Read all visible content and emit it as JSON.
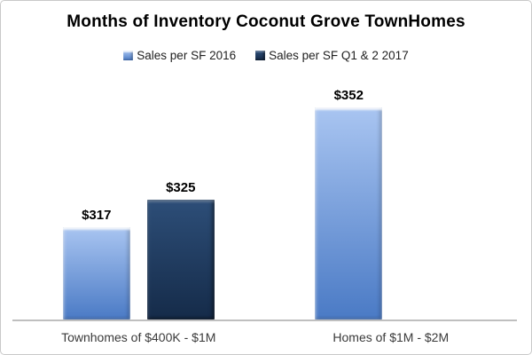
{
  "chart_data": {
    "type": "bar",
    "title": "Months of Inventory Coconut Grove TownHomes",
    "categories": [
      "Townhomes of $400K - $1M",
      "Homes of $1M - $2M"
    ],
    "series": [
      {
        "name": "Sales per SF 2016",
        "values": [
          317,
          352
        ],
        "color_top": "#a9c5f1",
        "color_bottom": "#4a7ac5"
      },
      {
        "name": "Sales per SF Q1 & 2 2017",
        "values": [
          325,
          null
        ],
        "color_top": "#2d4e78",
        "color_bottom": "#152b49"
      }
    ],
    "value_prefix": "$",
    "data_labels": [
      [
        "$317",
        "$352"
      ],
      [
        "$325",
        null
      ]
    ],
    "xlabel": "",
    "ylabel": "",
    "ylim": [
      290,
      365
    ],
    "grid": false,
    "legend_position": "top",
    "axis_line_color": "#bfbfbf",
    "background_color": "#ffffff",
    "border_color": "#c9c9c9"
  }
}
